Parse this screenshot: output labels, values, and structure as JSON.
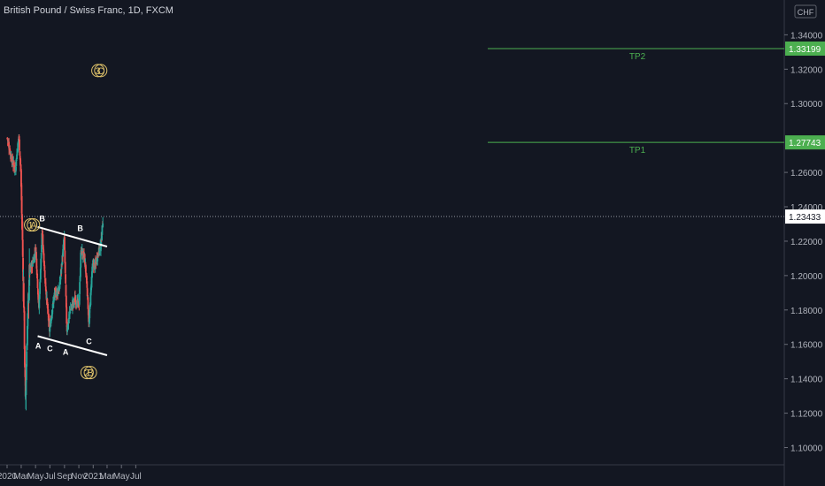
{
  "header": {
    "title": "British Pound / Swiss Franc, 1D, FXCM"
  },
  "colors": {
    "background": "#131722",
    "up": "#26a69a",
    "down": "#ef5350",
    "target_line": "#4caf50",
    "channel_line": "#ffffff",
    "wave_label": "#e0c36a",
    "axis_text": "#b2b5be"
  },
  "chart_data": {
    "type": "candlestick",
    "symbol": "GBPCHF",
    "timeframe": "1D",
    "currency": "CHF",
    "y_axis_ticks": [
      "1.10000",
      "1.12000",
      "1.14000",
      "1.16000",
      "1.18000",
      "1.20000",
      "1.22000",
      "1.24000",
      "1.26000",
      "1.30000",
      "1.32000",
      "1.34000"
    ],
    "x_axis_ticks": [
      "2020",
      "Mar",
      "May",
      "Jul",
      "Sep",
      "Nov",
      "2021",
      "Mar",
      "May",
      "Jul"
    ],
    "ylim": [
      1.0972,
      1.3613
    ],
    "price_labels": {
      "current": "1.23433",
      "tp1": "1.27743",
      "tp2": "1.33199"
    },
    "targets": [
      {
        "name": "TP2",
        "value": 1.33199
      },
      {
        "name": "TP1",
        "value": 1.27743
      }
    ],
    "channel": {
      "upper": [
        {
          "date": "2020-05-10",
          "price": 1.2283
        },
        {
          "date": "2021-03-01",
          "price": 1.2169
        }
      ],
      "lower": [
        {
          "date": "2020-05-10",
          "price": 1.1648
        },
        {
          "date": "2021-03-01",
          "price": 1.1537
        }
      ]
    },
    "wave_labels": [
      {
        "text": "1",
        "date": "2020-04-10",
        "price": 1.2295,
        "circled": true
      },
      {
        "text": "A",
        "date": "2020-04-22",
        "price": 1.2295,
        "circled": true
      },
      {
        "text": "2",
        "date": "2020-12-06",
        "price": 1.1436,
        "circled": true
      },
      {
        "text": "B",
        "date": "2020-12-20",
        "price": 1.1436,
        "circled": true
      },
      {
        "text": "3",
        "date": "2021-01-21",
        "price": 1.3192,
        "circled": true
      },
      {
        "text": "C",
        "date": "2021-02-02",
        "price": 1.3192,
        "circled": true
      }
    ],
    "sub_wave_labels": [
      {
        "text": "B",
        "date": "2020-05-29",
        "price": 1.2337
      },
      {
        "text": "A",
        "date": "2020-05-12",
        "price": 1.1595
      },
      {
        "text": "C",
        "date": "2020-07-01",
        "price": 1.158
      },
      {
        "text": "A",
        "date": "2020-09-06",
        "price": 1.156
      },
      {
        "text": "B",
        "date": "2020-11-07",
        "price": 1.228
      },
      {
        "text": "C",
        "date": "2020-12-14",
        "price": 1.1622
      }
    ],
    "price_path": [
      {
        "date": "2020-01-02",
        "price": 1.28
      },
      {
        "date": "2020-01-20",
        "price": 1.268
      },
      {
        "date": "2020-02-05",
        "price": 1.262
      },
      {
        "date": "2020-02-20",
        "price": 1.281
      },
      {
        "date": "2020-02-28",
        "price": 1.262
      },
      {
        "date": "2020-03-05",
        "price": 1.228
      },
      {
        "date": "2020-03-12",
        "price": 1.185
      },
      {
        "date": "2020-03-19",
        "price": 1.125
      },
      {
        "date": "2020-03-26",
        "price": 1.165
      },
      {
        "date": "2020-04-05",
        "price": 1.202
      },
      {
        "date": "2020-04-20",
        "price": 1.208
      },
      {
        "date": "2020-05-02",
        "price": 1.216
      },
      {
        "date": "2020-05-15",
        "price": 1.18
      },
      {
        "date": "2020-05-29",
        "price": 1.226
      },
      {
        "date": "2020-06-12",
        "price": 1.195
      },
      {
        "date": "2020-06-29",
        "price": 1.168
      },
      {
        "date": "2020-07-20",
        "price": 1.189
      },
      {
        "date": "2020-08-10",
        "price": 1.192
      },
      {
        "date": "2020-08-31",
        "price": 1.222
      },
      {
        "date": "2020-09-11",
        "price": 1.168
      },
      {
        "date": "2020-09-25",
        "price": 1.18
      },
      {
        "date": "2020-10-15",
        "price": 1.186
      },
      {
        "date": "2020-11-02",
        "price": 1.183
      },
      {
        "date": "2020-11-10",
        "price": 1.215
      },
      {
        "date": "2020-11-25",
        "price": 1.21
      },
      {
        "date": "2020-12-05",
        "price": 1.196
      },
      {
        "date": "2020-12-14",
        "price": 1.171
      },
      {
        "date": "2020-12-28",
        "price": 1.205
      },
      {
        "date": "2021-01-10",
        "price": 1.206
      },
      {
        "date": "2021-01-22",
        "price": 1.213
      },
      {
        "date": "2021-02-03",
        "price": 1.218
      },
      {
        "date": "2021-02-12",
        "price": 1.234
      }
    ]
  }
}
